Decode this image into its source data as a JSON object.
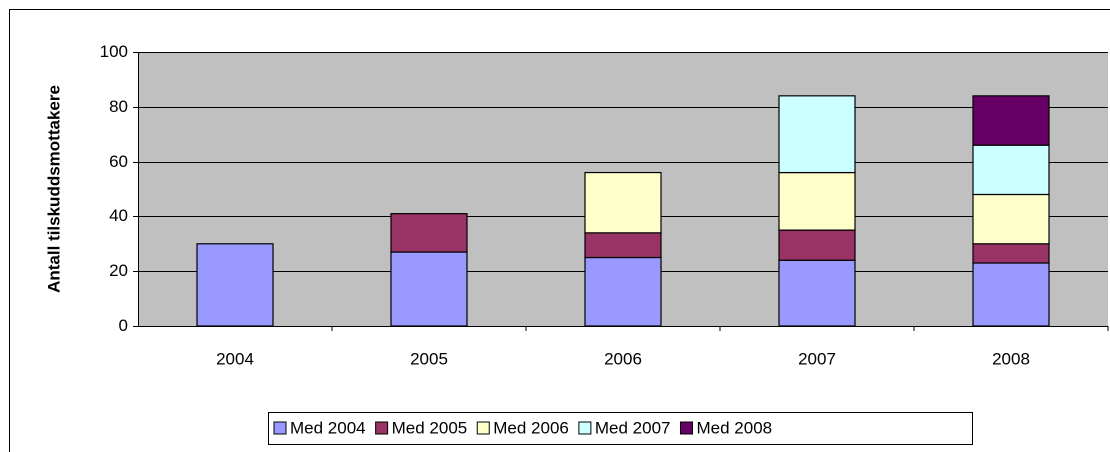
{
  "chart_data": {
    "type": "stacked-bar",
    "y_label": "Antall tilskuddsmottakere",
    "categories": [
      "2004",
      "2005",
      "2006",
      "2007",
      "2008"
    ],
    "series": [
      {
        "name": "Med 2004",
        "color": "#9999ff",
        "values": [
          30,
          27,
          25,
          24,
          23
        ]
      },
      {
        "name": "Med 2005",
        "color": "#993366",
        "values": [
          null,
          14,
          9,
          11,
          7
        ]
      },
      {
        "name": "Med 2006",
        "color": "#ffffcc",
        "values": [
          null,
          null,
          22,
          21,
          18
        ]
      },
      {
        "name": "Med 2007",
        "color": "#ccffff",
        "values": [
          null,
          null,
          null,
          28,
          18
        ]
      },
      {
        "name": "Med 2008",
        "color": "#660066",
        "values": [
          null,
          null,
          null,
          null,
          18
        ]
      }
    ],
    "ylim": [
      0,
      100
    ],
    "yticks": [
      0,
      20,
      40,
      60,
      80,
      100
    ],
    "grid": true,
    "legend": "bottom"
  }
}
